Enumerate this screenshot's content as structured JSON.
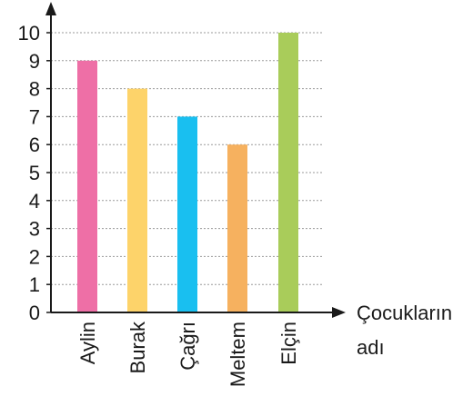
{
  "chart_data": {
    "type": "bar",
    "categories": [
      "Aylin",
      "Burak",
      "Çağrı",
      "Meltem",
      "Elçin"
    ],
    "values": [
      9,
      8,
      7,
      6,
      10
    ],
    "colors": [
      "#ee6fa6",
      "#fdd36a",
      "#19bff0",
      "#f6b15f",
      "#a9cc5a"
    ],
    "title": "",
    "xlabel_line1": "Çocukların",
    "xlabel_line2": "adı",
    "ylabel": "",
    "ylim": [
      0,
      10
    ],
    "yticks": [
      "0",
      "1",
      "2",
      "3",
      "4",
      "5",
      "6",
      "7",
      "8",
      "9",
      "10"
    ],
    "grid": true,
    "grid_style": "dashed"
  }
}
